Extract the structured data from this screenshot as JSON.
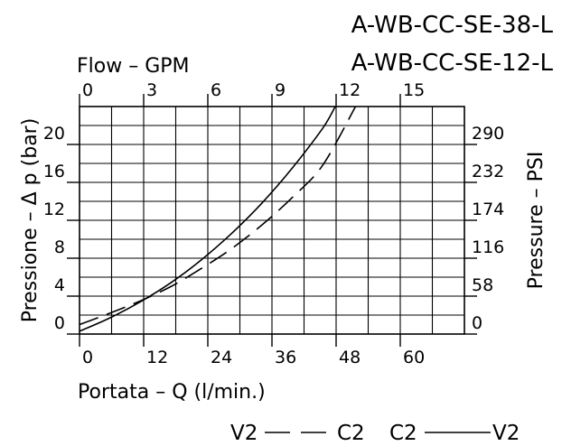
{
  "model_codes": [
    "A-WB-CC-SE-38-L",
    "A-WB-CC-SE-12-L"
  ],
  "axes": {
    "top_label": "Flow  –  GPM",
    "bottom_label": "Portata  –  Q  (l/min.)",
    "left_label": "Pressione  –  Δ p  (bar)",
    "right_label": "Pressure  –  PSI",
    "top_ticks": [
      "0",
      "3",
      "6",
      "9",
      "12",
      "15"
    ],
    "bottom_ticks": [
      "0",
      "12",
      "24",
      "36",
      "48",
      "60"
    ],
    "left_ticks": [
      "0",
      "4",
      "8",
      "12",
      "16",
      "20"
    ],
    "right_ticks": [
      "0",
      "58",
      "116",
      "174",
      "232",
      "290"
    ]
  },
  "legend": {
    "dashed": {
      "from": "V2",
      "to": "C2"
    },
    "solid": {
      "from": "C2",
      "to": "V2"
    }
  },
  "chart_data": {
    "type": "line",
    "xlabel": "Portata  –  Q  (l/min.)",
    "ylabel": "Pressione  –  Δ p  (bar)",
    "x2label": "Flow  –  GPM",
    "y2label": "Pressure  –  PSI",
    "xlim": [
      0,
      76
    ],
    "ylim": [
      0,
      24
    ],
    "grid": true,
    "series": [
      {
        "name": "C2 → V2",
        "style": "solid",
        "x": [
          0,
          6,
          12,
          18,
          24,
          30,
          36,
          42,
          48,
          50.5
        ],
        "y": [
          0.3,
          1.7,
          3.4,
          5.4,
          7.8,
          10.6,
          13.8,
          17.5,
          21.7,
          24
        ]
      },
      {
        "name": "V2 → C2",
        "style": "dashed",
        "x": [
          0,
          6,
          12,
          18,
          24,
          30,
          36,
          42,
          48,
          54.5
        ],
        "y": [
          1.0,
          2.2,
          3.5,
          5.0,
          6.9,
          9.0,
          11.5,
          14.4,
          17.8,
          24
        ]
      }
    ]
  }
}
